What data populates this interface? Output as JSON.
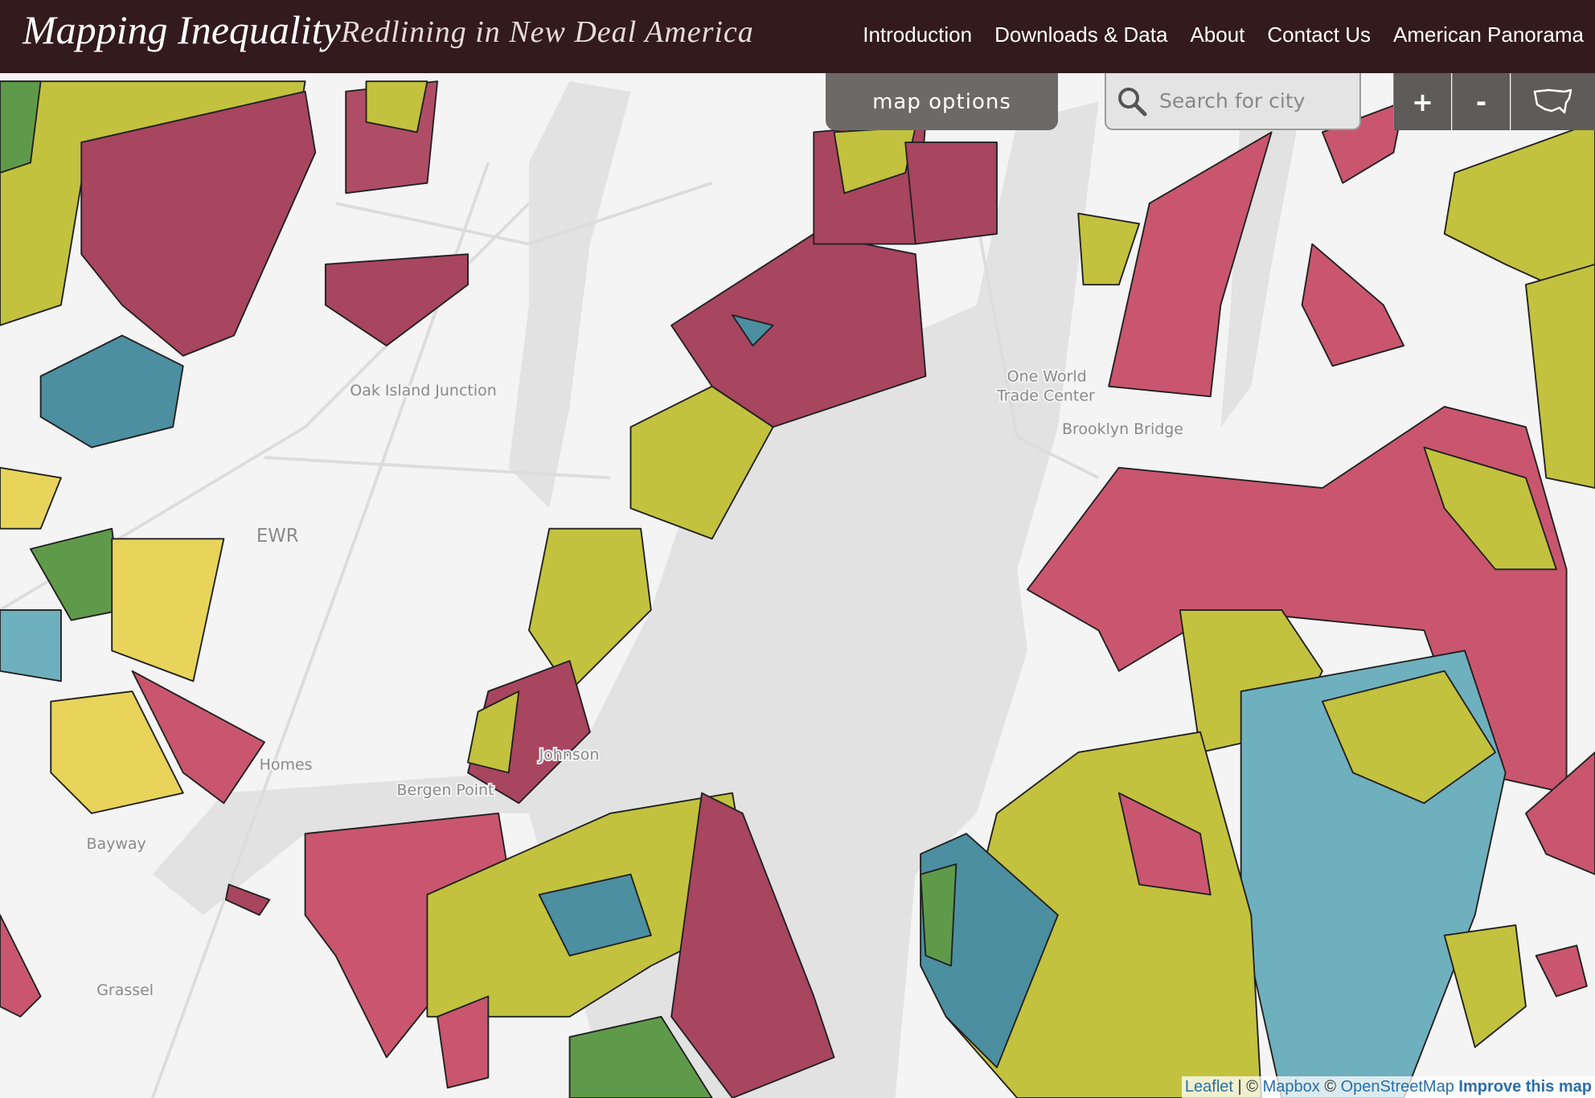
{
  "header": {
    "title": "Mapping Inequality",
    "subtitle": "Redlining in New Deal America"
  },
  "nav": [
    "Introduction",
    "Downloads & Data",
    "About",
    "Contact Us",
    "American Panorama"
  ],
  "controls": {
    "map_options": "map options",
    "search_placeholder": "Search for city",
    "zoom_in": "+",
    "zoom_out": "-"
  },
  "map": {
    "labels": [
      "Oak Island Junction",
      "EWR",
      "One World",
      "Trade Center",
      "Brooklyn Bridge",
      "Bergen Point",
      "Bayway",
      "Grassel",
      "Homes",
      "Johnson"
    ]
  },
  "attribution": [
    "Leaflet",
    "| ©",
    "Mapbox",
    "©",
    "OpenStreetMap",
    "Improve this map"
  ]
}
